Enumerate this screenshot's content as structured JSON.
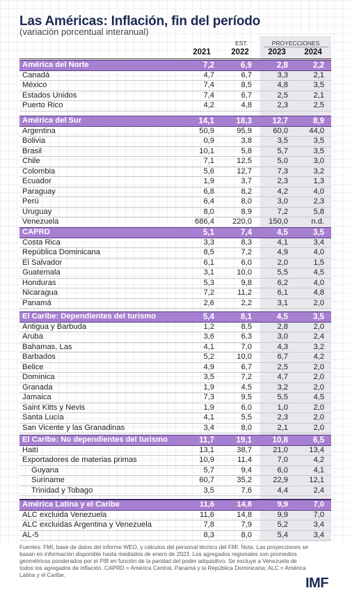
{
  "title": "Las Américas: Inflación, fin del período",
  "subtitle": "(variación porcentual interanual)",
  "header": {
    "est_label": "EST.",
    "proj_label": "PROYECCIONES",
    "years": [
      "2021",
      "2022",
      "2023",
      "2024"
    ]
  },
  "sections": [
    {
      "type": "region",
      "name": "América del Norte",
      "values": [
        "7,2",
        "6,9",
        "2,8",
        "2,2"
      ],
      "rows": [
        {
          "name": "Canadá",
          "values": [
            "4,7",
            "6,7",
            "3,3",
            "2,1"
          ]
        },
        {
          "name": "México",
          "values": [
            "7,4",
            "8,5",
            "4,8",
            "3,5"
          ]
        },
        {
          "name": "Estados Unidos",
          "values": [
            "7,4",
            "6,7",
            "2,5",
            "2,1"
          ]
        },
        {
          "name": "Puerto Rico",
          "values": [
            "4,2",
            "4,8",
            "2,3",
            "2,5"
          ]
        }
      ]
    },
    {
      "type": "region",
      "name": "América del Sur",
      "values": [
        "14,1",
        "18,3",
        "12,7",
        "8,9"
      ],
      "rows": [
        {
          "name": "Argentina",
          "values": [
            "50,9",
            "95,9",
            "60,0",
            "44,0"
          ]
        },
        {
          "name": "Bolivia",
          "values": [
            "0,9",
            "3,8",
            "3,5",
            "3,5"
          ]
        },
        {
          "name": "Brasil",
          "values": [
            "10,1",
            "5,8",
            "5,7",
            "3,5"
          ]
        },
        {
          "name": "Chile",
          "values": [
            "7,1",
            "12,5",
            "5,0",
            "3,0"
          ]
        },
        {
          "name": "Colombia",
          "values": [
            "5,6",
            "12,7",
            "7,3",
            "3,2"
          ]
        },
        {
          "name": "Ecuador",
          "values": [
            "1,9",
            "3,7",
            "2,3",
            "1,3"
          ]
        },
        {
          "name": "Paraguay",
          "values": [
            "6,8",
            "8,2",
            "4,2",
            "4,0"
          ]
        },
        {
          "name": "Perú",
          "values": [
            "6,4",
            "8,0",
            "3,0",
            "2,3"
          ]
        },
        {
          "name": "Uruguay",
          "values": [
            "8,0",
            "8,9",
            "7,2",
            "5,8"
          ]
        },
        {
          "name": "Venezuela",
          "values": [
            "686,4",
            "220,0",
            "150,0",
            "n.d."
          ]
        }
      ]
    },
    {
      "type": "region",
      "name": "CAPRD",
      "values": [
        "5,1",
        "7,4",
        "4,5",
        "3,5"
      ],
      "rows": [
        {
          "name": "Costa Rica",
          "values": [
            "3,3",
            "8,3",
            "4,1",
            "3,4"
          ]
        },
        {
          "name": "República Dominicana",
          "values": [
            "8,5",
            "7,2",
            "4,9",
            "4,0"
          ]
        },
        {
          "name": "El Salvador",
          "values": [
            "6,1",
            "6,0",
            "2,0",
            "1,5"
          ]
        },
        {
          "name": "Guatemala",
          "values": [
            "3,1",
            "10,0",
            "5,5",
            "4,5"
          ]
        },
        {
          "name": "Honduras",
          "values": [
            "5,3",
            "9,8",
            "6,2",
            "4,0"
          ]
        },
        {
          "name": "Nicaragua",
          "values": [
            "7,2",
            "11,2",
            "6,1",
            "4,8"
          ]
        },
        {
          "name": "Panamá",
          "values": [
            "2,6",
            "2,2",
            "3,1",
            "2,0"
          ]
        }
      ]
    },
    {
      "type": "region",
      "name": "El Caribe: Dependientes del turismo",
      "values": [
        "5,4",
        "8,1",
        "4,5",
        "3,5"
      ],
      "rows": [
        {
          "name": "Antigua y Barbuda",
          "values": [
            "1,2",
            "8,5",
            "2,8",
            "2,0"
          ]
        },
        {
          "name": "Aruba",
          "values": [
            "3,6",
            "6,3",
            "3,0",
            "2,4"
          ]
        },
        {
          "name": "Bahamas, Las",
          "values": [
            "4,1",
            "7,0",
            "4,3",
            "3,2"
          ]
        },
        {
          "name": "Barbados",
          "values": [
            "5,2",
            "10,0",
            "6,7",
            "4,2"
          ]
        },
        {
          "name": "Belice",
          "values": [
            "4,9",
            "6,7",
            "2,5",
            "2,0"
          ]
        },
        {
          "name": "Dominica",
          "values": [
            "3,5",
            "7,2",
            "4,7",
            "2,0"
          ]
        },
        {
          "name": "Granada",
          "values": [
            "1,9",
            "4,5",
            "3,2",
            "2,0"
          ]
        },
        {
          "name": "Jamaica",
          "values": [
            "7,3",
            "9,5",
            "5,5",
            "4,5"
          ]
        },
        {
          "name": "Saint Kitts y Nevis",
          "values": [
            "1,9",
            "6,0",
            "1,0",
            "2,0"
          ]
        },
        {
          "name": "Santa Lucía",
          "values": [
            "4,1",
            "5,5",
            "2,3",
            "2,0"
          ]
        },
        {
          "name": "San Vicente y las Granadinas",
          "values": [
            "3,4",
            "8,0",
            "2,1",
            "2,0"
          ]
        }
      ]
    },
    {
      "type": "region",
      "name": "El Caribe: No dependientes del turismo",
      "values": [
        "11,7",
        "19,1",
        "10,8",
        "6,5"
      ],
      "rows": [
        {
          "name": "Haití",
          "values": [
            "13,1",
            "38,7",
            "21,0",
            "13,4"
          ]
        },
        {
          "name": "Exportadores de materias primas",
          "values": [
            "10,9",
            "11,4",
            "7,0",
            "4,2"
          ]
        },
        {
          "name": "Guyana",
          "indent": true,
          "values": [
            "5,7",
            "9,4",
            "6,0",
            "4,1"
          ]
        },
        {
          "name": "Suriname",
          "indent": true,
          "values": [
            "60,7",
            "35,2",
            "22,9",
            "12,1"
          ]
        },
        {
          "name": "Trinidad y Tobago",
          "indent": true,
          "values": [
            "3,5",
            "7,6",
            "4,4",
            "2,4"
          ]
        }
      ]
    },
    {
      "type": "final",
      "name": "América Latina y el Caribe",
      "values": [
        "11,6",
        "14,8",
        "9,9",
        "7,0"
      ],
      "rows": [
        {
          "name": "ALC excluida Venezuela",
          "values": [
            "11,6",
            "14,8",
            "9,9",
            "7,0"
          ]
        },
        {
          "name": "ALC excluidas Argentina y Venezuela",
          "values": [
            "7,8",
            "7,9",
            "5,2",
            "3,4"
          ]
        },
        {
          "name": "AL-5",
          "values": [
            "8,3",
            "8,0",
            "5,4",
            "3,4"
          ]
        }
      ]
    }
  ],
  "footer": "Fuentes: FMI, base de datos del informe WEO, y cálculos del personal técnico del FMI. Nota: Las proyecciones se basan en información disponible hasta mediados de enero de 2023. Los agregados regionales son promedios geométricos ponderados por el PIB en función de la paridad del poder adquisitivo. Se excluye a Venezuela de todos los agregados de inflación. CAPRD = América Central, Panamá y la República Dominicana; ALC = América Latina y el Caribe.",
  "logo": "IMF",
  "colors": {
    "region_bar": "#a77fd0",
    "title": "#1b2a52",
    "projection_shade": "#e7e7ec"
  }
}
